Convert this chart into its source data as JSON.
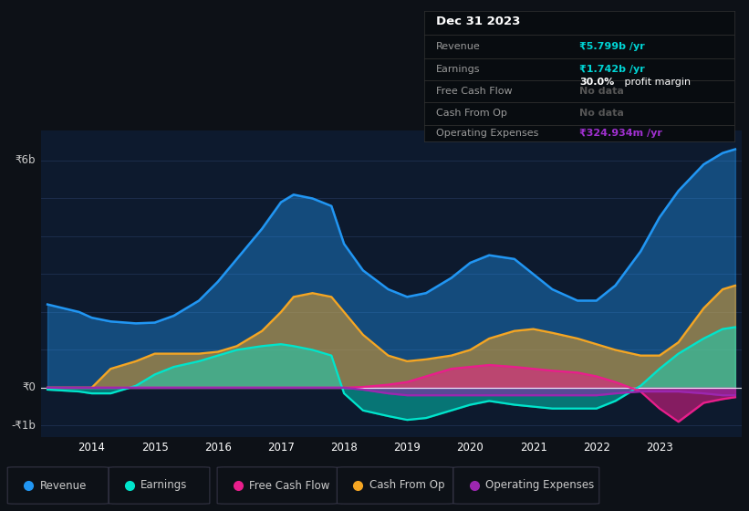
{
  "bg_color": "#0d1117",
  "plot_bg_color": "#0d1a2e",
  "grid_color": "#1e3050",
  "title_date": "Dec 31 2023",
  "ylabel_top": "₹6b",
  "ylabel_zero": "₹0",
  "ylabel_bottom": "-₹1b",
  "ylim": [
    -1.3,
    6.8
  ],
  "xlim": [
    2013.2,
    2024.3
  ],
  "years": [
    2013.3,
    2013.8,
    2014.0,
    2014.3,
    2014.7,
    2015.0,
    2015.3,
    2015.7,
    2016.0,
    2016.3,
    2016.7,
    2017.0,
    2017.2,
    2017.5,
    2017.8,
    2018.0,
    2018.3,
    2018.7,
    2019.0,
    2019.3,
    2019.7,
    2020.0,
    2020.3,
    2020.7,
    2021.0,
    2021.3,
    2021.7,
    2022.0,
    2022.3,
    2022.7,
    2023.0,
    2023.3,
    2023.7,
    2024.0,
    2024.2
  ],
  "revenue": [
    2.2,
    2.0,
    1.85,
    1.75,
    1.7,
    1.72,
    1.9,
    2.3,
    2.8,
    3.4,
    4.2,
    4.9,
    5.1,
    5.0,
    4.8,
    3.8,
    3.1,
    2.6,
    2.4,
    2.5,
    2.9,
    3.3,
    3.5,
    3.4,
    3.0,
    2.6,
    2.3,
    2.3,
    2.7,
    3.6,
    4.5,
    5.2,
    5.9,
    6.2,
    6.3
  ],
  "earnings": [
    -0.05,
    -0.1,
    -0.15,
    -0.15,
    0.05,
    0.35,
    0.55,
    0.7,
    0.85,
    1.0,
    1.1,
    1.15,
    1.1,
    1.0,
    0.85,
    -0.15,
    -0.6,
    -0.75,
    -0.85,
    -0.8,
    -0.6,
    -0.45,
    -0.35,
    -0.45,
    -0.5,
    -0.55,
    -0.55,
    -0.55,
    -0.35,
    0.05,
    0.5,
    0.9,
    1.3,
    1.55,
    1.6
  ],
  "free_cash_flow": [
    0.0,
    0.0,
    0.0,
    0.0,
    0.0,
    0.0,
    0.0,
    0.0,
    0.0,
    0.0,
    0.0,
    0.0,
    0.0,
    0.0,
    0.0,
    0.0,
    0.02,
    0.08,
    0.15,
    0.3,
    0.5,
    0.55,
    0.6,
    0.55,
    0.5,
    0.45,
    0.4,
    0.3,
    0.15,
    -0.1,
    -0.55,
    -0.9,
    -0.4,
    -0.3,
    -0.25
  ],
  "cash_from_op": [
    0.0,
    0.0,
    0.0,
    0.5,
    0.7,
    0.9,
    0.9,
    0.9,
    0.95,
    1.1,
    1.5,
    2.0,
    2.4,
    2.5,
    2.4,
    2.0,
    1.4,
    0.85,
    0.7,
    0.75,
    0.85,
    1.0,
    1.3,
    1.5,
    1.55,
    1.45,
    1.3,
    1.15,
    1.0,
    0.85,
    0.85,
    1.2,
    2.1,
    2.6,
    2.7
  ],
  "operating_expenses": [
    0.0,
    0.0,
    0.0,
    0.0,
    0.0,
    0.0,
    0.0,
    0.0,
    0.0,
    0.0,
    0.0,
    0.0,
    0.0,
    0.0,
    0.0,
    0.0,
    -0.05,
    -0.15,
    -0.2,
    -0.2,
    -0.2,
    -0.2,
    -0.2,
    -0.2,
    -0.2,
    -0.2,
    -0.2,
    -0.2,
    -0.15,
    -0.1,
    -0.1,
    -0.1,
    -0.15,
    -0.2,
    -0.2
  ],
  "xtick_labels": [
    "2014",
    "2015",
    "2016",
    "2017",
    "2018",
    "2019",
    "2020",
    "2021",
    "2022",
    "2023"
  ],
  "xtick_positions": [
    2014,
    2015,
    2016,
    2017,
    2018,
    2019,
    2020,
    2021,
    2022,
    2023
  ],
  "colors": {
    "revenue": "#2196f3",
    "earnings": "#00e5cc",
    "free_cash_flow": "#e91e8c",
    "cash_from_op": "#f5a623",
    "operating_expenses": "#9c27b0"
  },
  "legend": [
    {
      "label": "Revenue",
      "color": "#2196f3"
    },
    {
      "label": "Earnings",
      "color": "#00e5cc"
    },
    {
      "label": "Free Cash Flow",
      "color": "#e91e8c"
    },
    {
      "label": "Cash From Op",
      "color": "#f5a623"
    },
    {
      "label": "Operating Expenses",
      "color": "#9c27b0"
    }
  ]
}
